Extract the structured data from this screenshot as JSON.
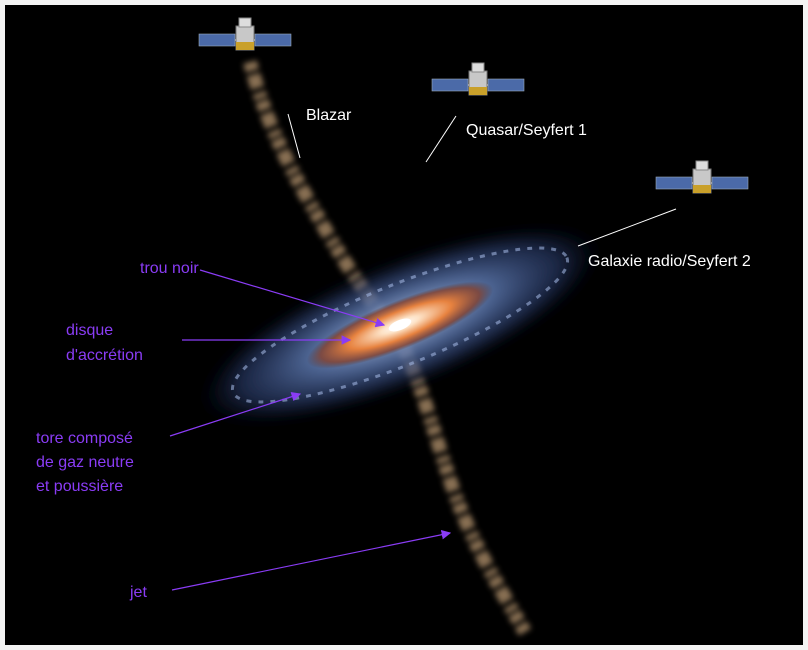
{
  "labels": {
    "observers": [
      "Blazar",
      "Quasar/Seyfert 1",
      "Galaxie radio/Seyfert 2"
    ],
    "components": [
      {
        "lines": [
          "trou noir"
        ]
      },
      {
        "lines": [
          "disque",
          "d'accrétion"
        ]
      },
      {
        "lines": [
          "tore composé",
          "de gaz neutre",
          "et poussière"
        ]
      },
      {
        "lines": [
          "jet"
        ]
      }
    ]
  }
}
